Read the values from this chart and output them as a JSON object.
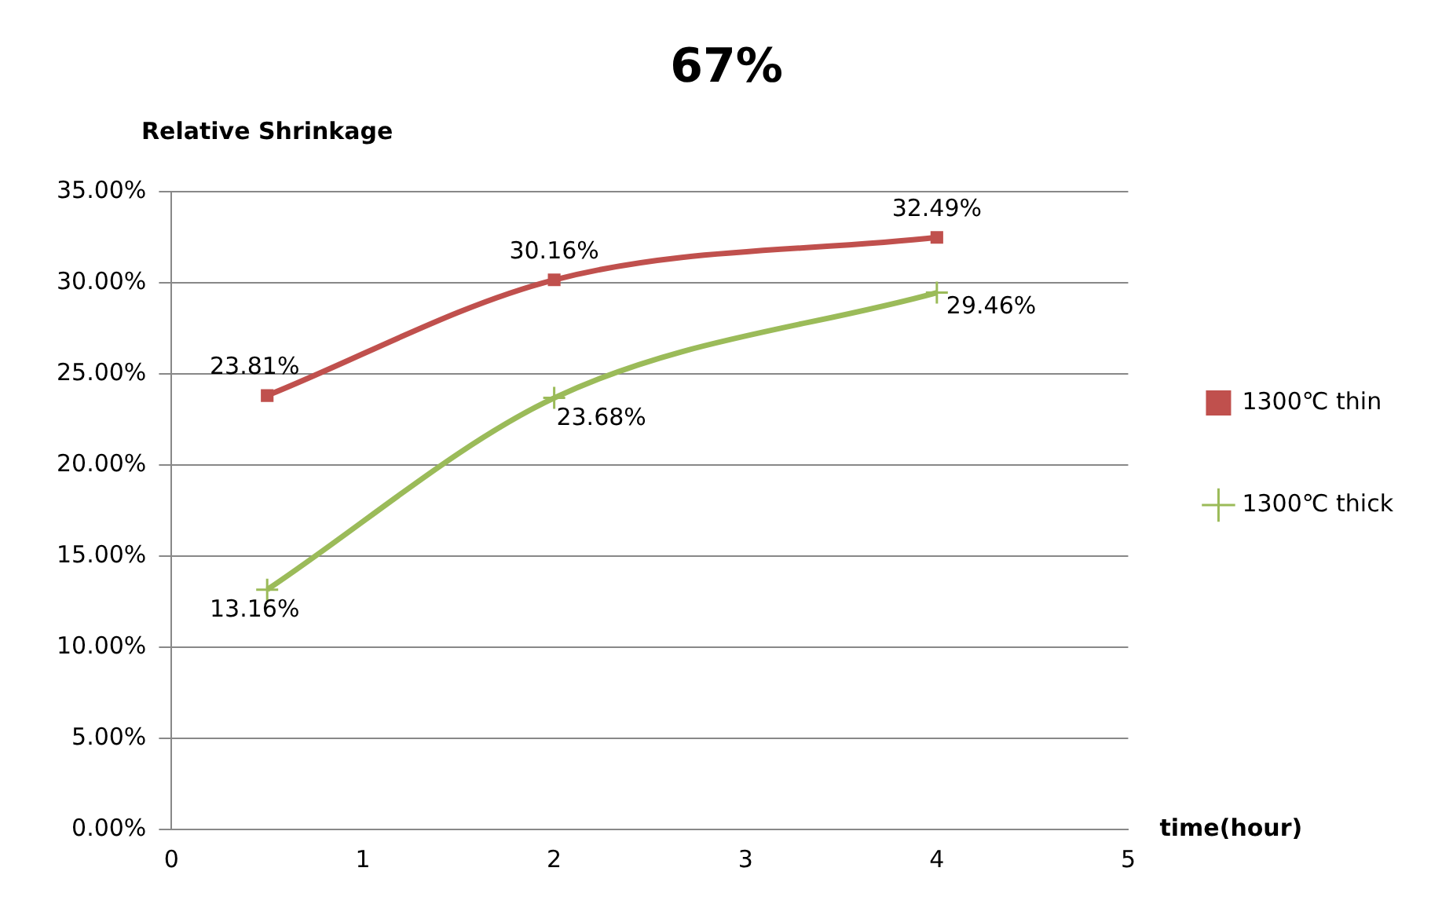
{
  "chart_data": {
    "type": "line",
    "title": "67%",
    "ylabel": "Relative Shrinkage",
    "xlabel": "time(hour)",
    "x": [
      0.5,
      2,
      4
    ],
    "series": [
      {
        "name": "1300℃ thin",
        "color": "#c0504d",
        "marker": "square",
        "values": [
          23.81,
          30.16,
          32.49
        ],
        "value_labels": [
          "23.81%",
          "30.16%",
          "32.49%"
        ]
      },
      {
        "name": "1300℃ thick",
        "color": "#9bbb59",
        "marker": "cross",
        "values": [
          13.16,
          23.68,
          29.46
        ],
        "value_labels": [
          "13.16%",
          "23.68%",
          "29.46%"
        ]
      }
    ],
    "xlim": [
      0,
      5
    ],
    "xticks": [
      0,
      1,
      2,
      3,
      4,
      5
    ],
    "ylim": [
      0,
      35
    ],
    "yticks": [
      {
        "value": 0,
        "label": "0.00%"
      },
      {
        "value": 5,
        "label": "5.00%"
      },
      {
        "value": 10,
        "label": "10.00%"
      },
      {
        "value": 15,
        "label": "15.00%"
      },
      {
        "value": 20,
        "label": "20.00%"
      },
      {
        "value": 25,
        "label": "25.00%"
      },
      {
        "value": 30,
        "label": "30.00%"
      },
      {
        "value": 35,
        "label": "35.00%"
      }
    ],
    "grid": "y",
    "legend": "right"
  }
}
